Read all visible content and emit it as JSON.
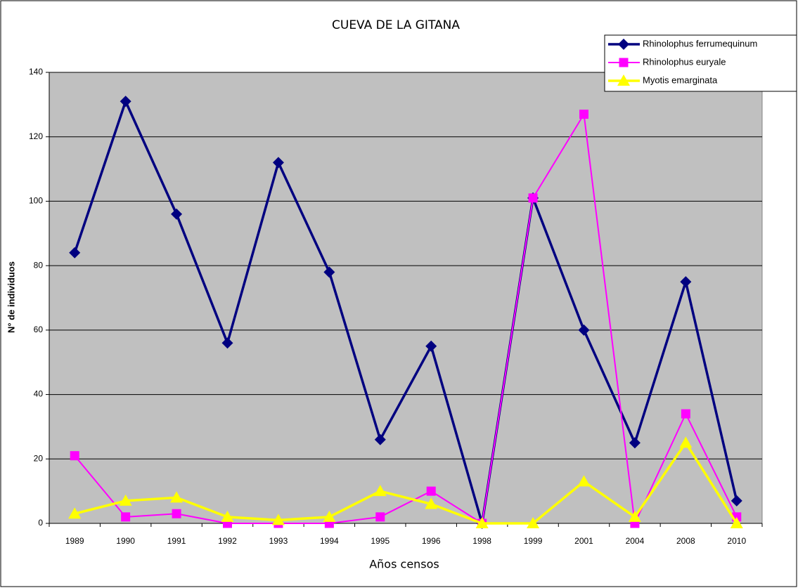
{
  "chart_data": {
    "type": "line",
    "title": "CUEVA DE LA GITANA",
    "x_label": "Años censos",
    "y_label": "N° de individuos",
    "categories": [
      "1989",
      "1990",
      "1991",
      "1992",
      "1993",
      "1994",
      "1995",
      "1996",
      "1998",
      "1999",
      "2001",
      "2004",
      "2008",
      "2010"
    ],
    "series": [
      {
        "name": "Rhinolophus ferrumequinum",
        "color": "#000080",
        "marker": "diamond",
        "values": [
          84,
          131,
          96,
          56,
          112,
          78,
          26,
          55,
          0,
          101,
          60,
          25,
          75,
          7
        ]
      },
      {
        "name": "Rhinolophus euryale",
        "color": "#ff00ff",
        "marker": "square",
        "values": [
          21,
          2,
          3,
          0,
          0,
          0,
          2,
          10,
          0,
          101,
          127,
          0,
          34,
          2
        ]
      },
      {
        "name": "Myotis emarginata",
        "color": "#ffff00",
        "marker": "triangle",
        "values": [
          3,
          7,
          8,
          2,
          1,
          2,
          10,
          6,
          0,
          0,
          13,
          2,
          25,
          0
        ]
      }
    ],
    "ylim": [
      0,
      140
    ],
    "yticks": [
      0,
      20,
      40,
      60,
      80,
      100,
      120,
      140
    ],
    "grid": true,
    "legend": "top-right",
    "plot_background": "#c0c0c0"
  }
}
